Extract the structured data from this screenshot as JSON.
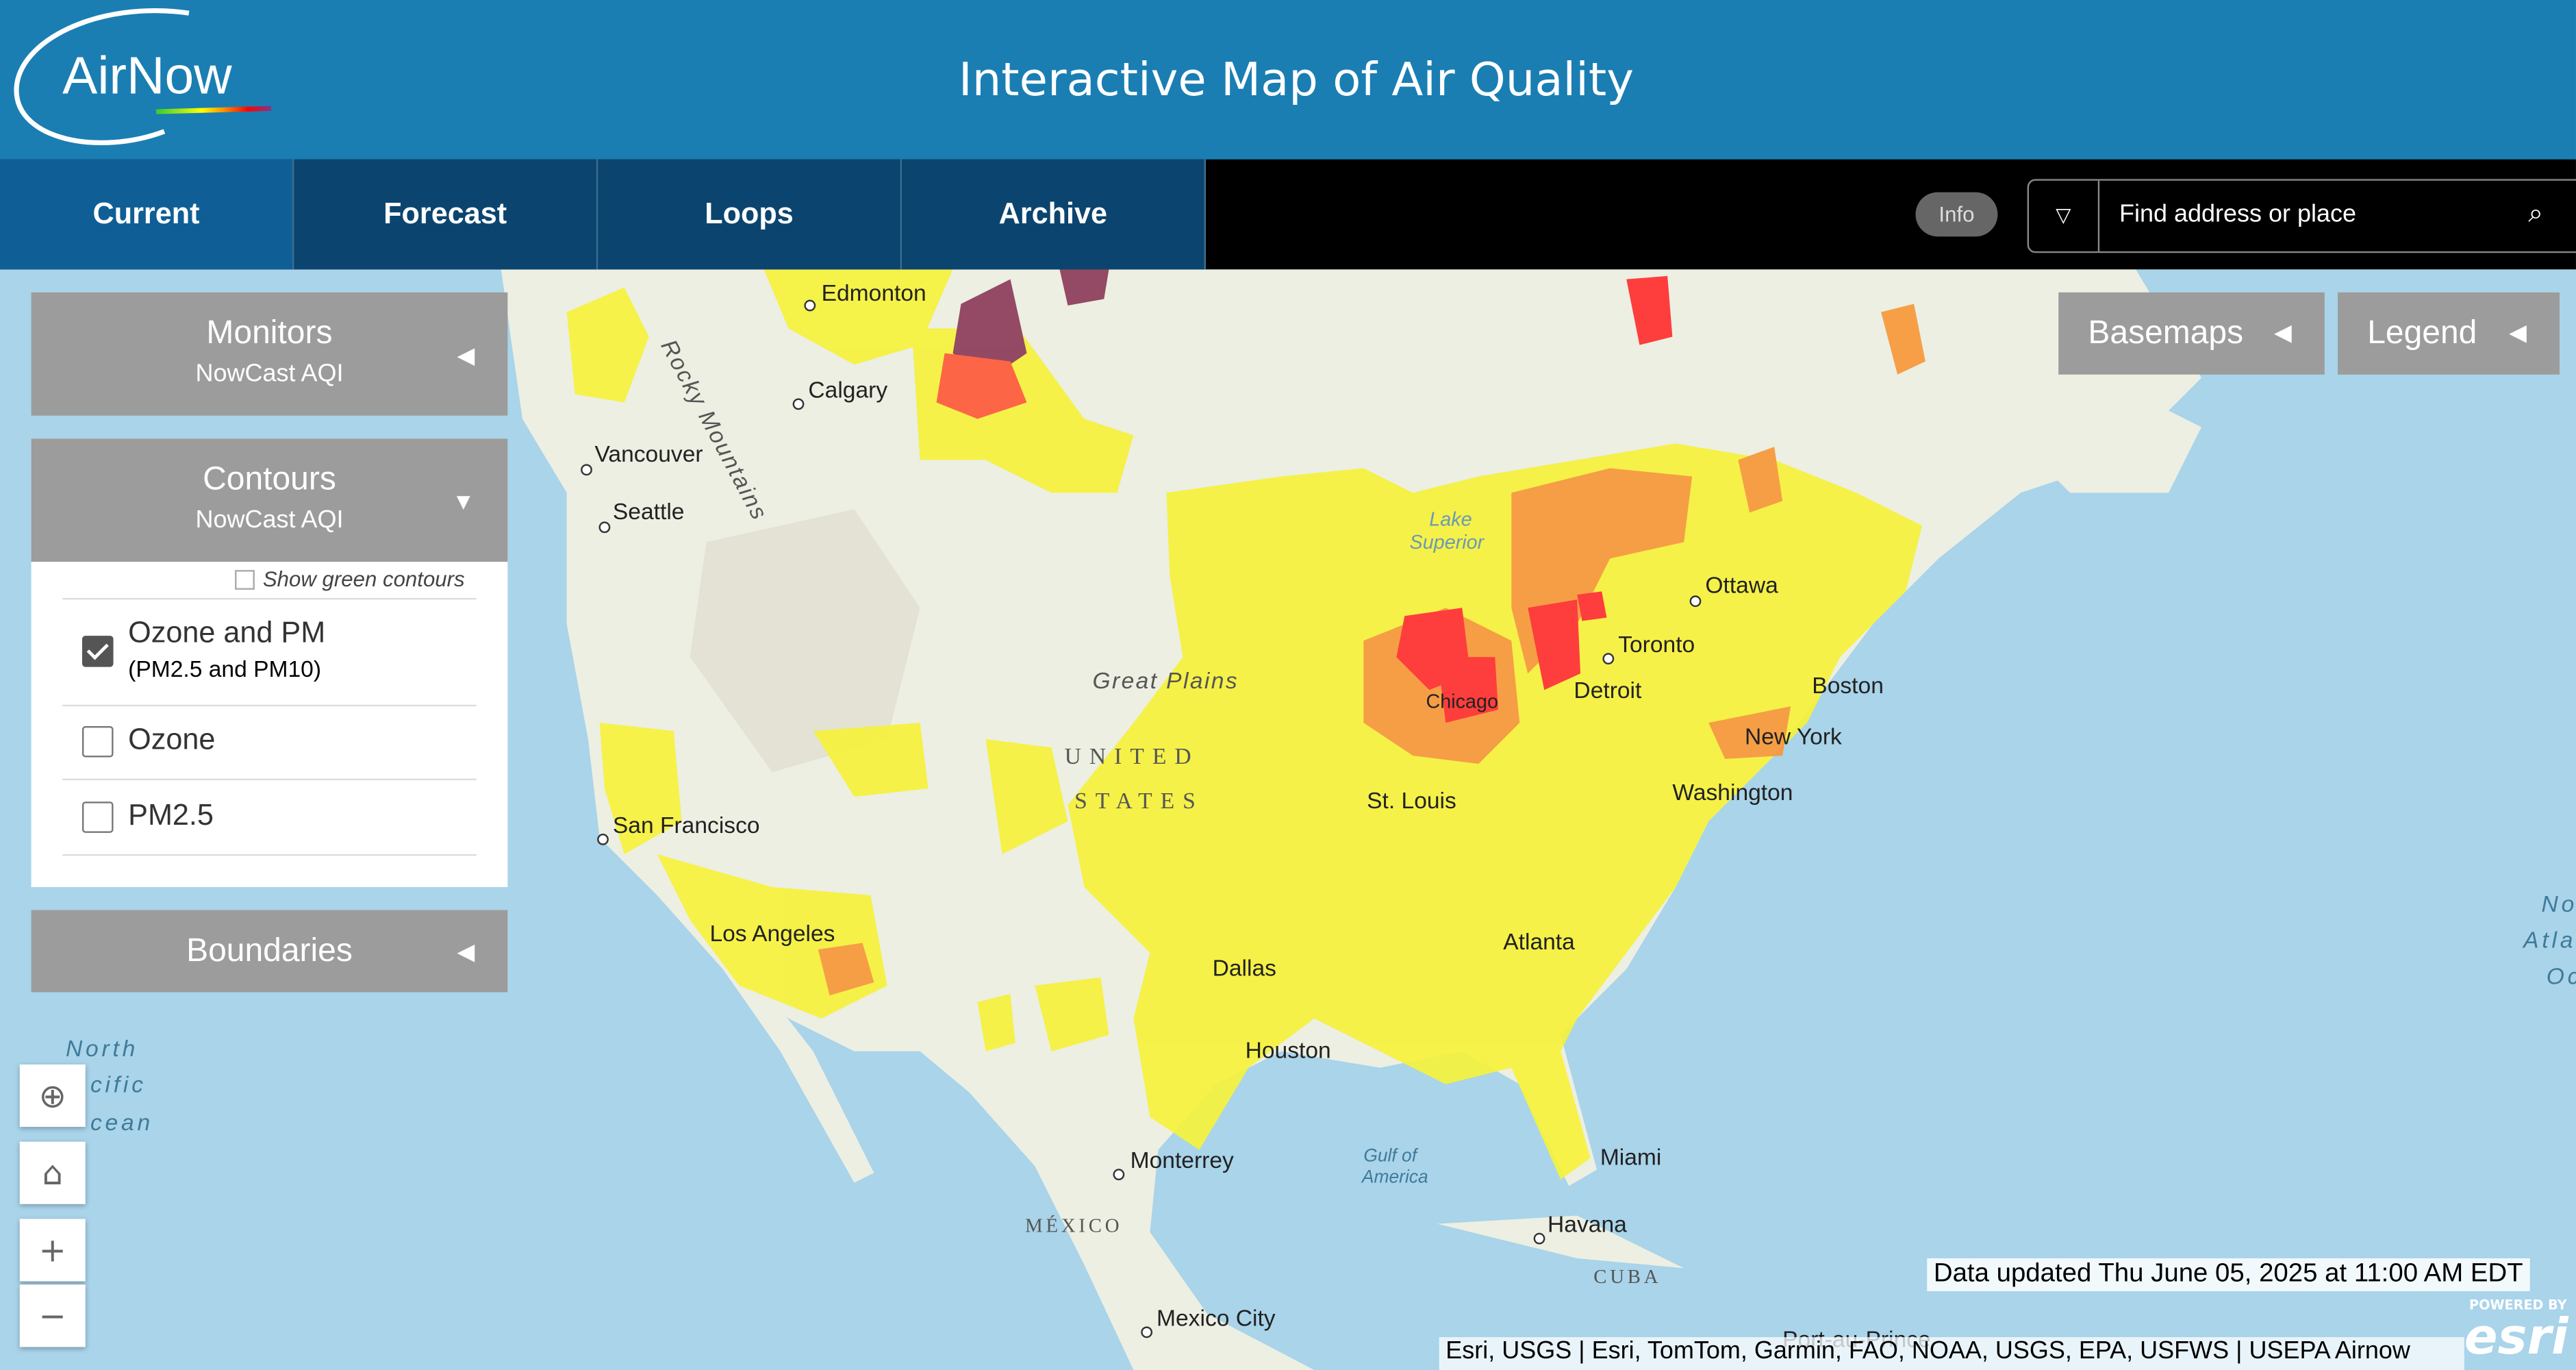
{
  "header": {
    "logo": "AirNow",
    "title": "Interactive Map of Air Quality"
  },
  "nav": {
    "tabs": [
      "Current",
      "Forecast",
      "Loops",
      "Archive"
    ],
    "info": "Info",
    "search_placeholder": "Find address or place"
  },
  "panels": {
    "monitors": {
      "title": "Monitors",
      "subtitle": "NowCast AQI"
    },
    "contours": {
      "title": "Contours",
      "subtitle": "NowCast AQI",
      "green_toggle": "Show green contours",
      "options": [
        {
          "label": "Ozone and PM",
          "sublabel": "(PM2.5 and PM10)",
          "checked": true
        },
        {
          "label": "Ozone",
          "checked": false
        },
        {
          "label": "PM2.5",
          "checked": false
        }
      ]
    },
    "boundaries": {
      "title": "Boundaries"
    }
  },
  "map_buttons": [
    "Basemaps",
    "Legend"
  ],
  "map_labels": [
    "Edmonton",
    "Calgary",
    "Vancouver",
    "Seattle",
    "Rocky Mountains",
    "Lake",
    "Superior",
    "Ottawa",
    "Toronto",
    "Detroit",
    "Chicago",
    "Boston",
    "New York",
    "Washington",
    "Great Plains",
    "UNITED",
    "STATES",
    "St. Louis",
    "San Francisco",
    "Los Angeles",
    "Dallas",
    "Atlanta",
    "Houston",
    "Monterrey",
    "Miami",
    "Havana",
    "CUBA",
    "MÉXICO",
    "Mexico City",
    "Gulf of",
    "America",
    "North",
    "cific",
    "cean",
    "No",
    "Atla",
    "Oc",
    "Port-au-Prince"
  ],
  "footer": {
    "status": "Data updated Thu June 05, 2025 at 11:00 AM EDT",
    "attribution": "Esri, USGS | Esri, TomTom, Garmin, FAO, NOAA, USGS, EPA, USFWS | USEPA Airnow",
    "powered": "POWERED BY",
    "esri": "esri"
  }
}
